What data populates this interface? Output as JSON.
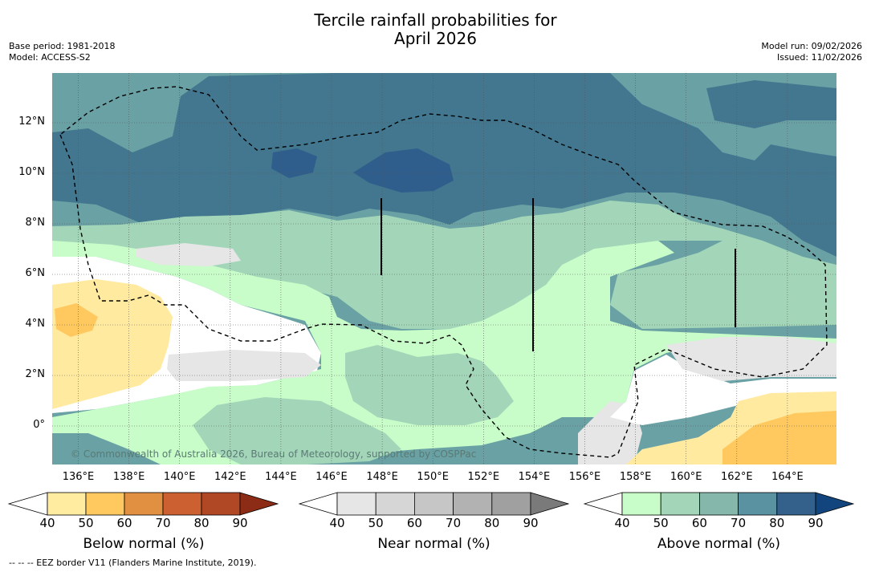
{
  "title_line1": "Tercile rainfall probabilities for",
  "title_line2": "April 2026",
  "meta_left": {
    "base_period": "Base period: 1981-2018",
    "model": "Model: ACCESS-S2"
  },
  "meta_right": {
    "model_run": "Model run: 09/02/2026",
    "issued": "Issued: 11/02/2026"
  },
  "map": {
    "lat_labels": [
      "12°N",
      "10°N",
      "8°N",
      "6°N",
      "4°N",
      "2°N",
      "0°"
    ],
    "lon_labels": [
      "136°E",
      "138°E",
      "140°E",
      "142°E",
      "144°E",
      "146°E",
      "148°E",
      "150°E",
      "152°E",
      "154°E",
      "156°E",
      "158°E",
      "160°E",
      "162°E",
      "164°E"
    ],
    "copyright": "© Commonwealth of Australia 2026, Bureau of Meteorology, supported by COSPPac",
    "colors": {
      "background": "#ffffff",
      "above_50": "#a3d6b8",
      "above_60": "#69a1a4",
      "above_70": "#42778f",
      "above_80": "#2f5e8c",
      "near_40": "#c8fcc8",
      "near_50": "#e6e6e6",
      "below_40": "#ffeaa0",
      "below_50": "#ffc960"
    }
  },
  "colorbars": [
    {
      "title": "Below normal (%)",
      "ticks": [
        "40",
        "50",
        "60",
        "70",
        "80",
        "90"
      ],
      "colors": [
        "#ffffff",
        "#ffeca0",
        "#ffc960",
        "#e09040",
        "#cc6030",
        "#b04826",
        "#8c2c16"
      ]
    },
    {
      "title": "Near normal (%)",
      "ticks": [
        "40",
        "50",
        "60",
        "70",
        "80",
        "90"
      ],
      "colors": [
        "#ffffff",
        "#e6e6e6",
        "#d6d6d6",
        "#c6c6c6",
        "#b2b2b2",
        "#a0a0a0",
        "#7a7a7a"
      ]
    },
    {
      "title": "Above normal (%)",
      "ticks": [
        "40",
        "50",
        "60",
        "70",
        "80",
        "90"
      ],
      "colors": [
        "#ffffff",
        "#c8fcc8",
        "#a3d6b8",
        "#85b8aa",
        "#5a92a2",
        "#34608c",
        "#12457e"
      ]
    }
  ],
  "footnote": "-- -- -- EEZ border V11 (Flanders Marine Institute, 2019)."
}
